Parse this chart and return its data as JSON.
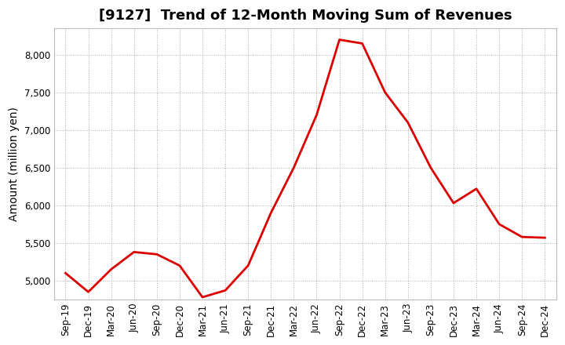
{
  "title": "[9127]  Trend of 12-Month Moving Sum of Revenues",
  "ylabel": "Amount (million yen)",
  "background_color": "#ffffff",
  "grid_color": "#aaaaaa",
  "line_color": "#dd0000",
  "x_labels": [
    "Sep-19",
    "Dec-19",
    "Mar-20",
    "Jun-20",
    "Sep-20",
    "Dec-20",
    "Mar-21",
    "Jun-21",
    "Sep-21",
    "Dec-21",
    "Mar-22",
    "Jun-22",
    "Sep-22",
    "Dec-22",
    "Mar-23",
    "Jun-23",
    "Sep-23",
    "Dec-23",
    "Mar-24",
    "Jun-24",
    "Sep-24",
    "Dec-24"
  ],
  "values": [
    5100,
    4850,
    5150,
    5380,
    5350,
    5200,
    4780,
    4870,
    5200,
    5900,
    6500,
    7200,
    8200,
    8150,
    7500,
    7100,
    6500,
    6030,
    6220,
    5750,
    5580,
    5570
  ],
  "ylim_min": 4750,
  "ylim_max": 8350,
  "yticks": [
    5000,
    5500,
    6000,
    6500,
    7000,
    7500,
    8000
  ],
  "title_fontsize": 13,
  "label_fontsize": 10,
  "tick_fontsize": 8.5
}
